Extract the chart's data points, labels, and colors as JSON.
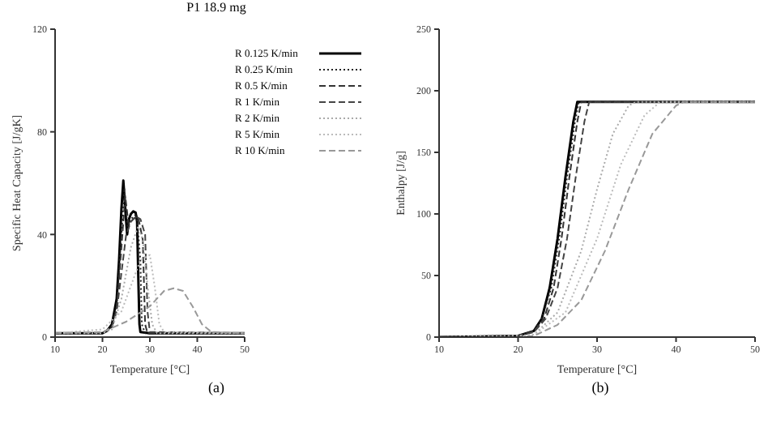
{
  "chart_data": [
    {
      "type": "line",
      "title": "P1 18.9 mg",
      "xlabel": "Temperature [°C]",
      "ylabel": "Specific Heat Capacity [J/gK]",
      "xlim": [
        10,
        50
      ],
      "xticks": [
        10,
        20,
        30,
        40,
        50
      ],
      "ylim": [
        0,
        120
      ],
      "yticks": [
        0,
        40,
        80,
        120
      ],
      "legend": "top right",
      "marker": "none",
      "annotations": [
        "(a)"
      ],
      "series": [
        {
          "name": "R 0.125 K/min",
          "color": "#000000",
          "line_style": "solid",
          "x": [
            10,
            20,
            21,
            22,
            23,
            23.5,
            24,
            24.4,
            24.8,
            25.2,
            25.6,
            26,
            26.5,
            27,
            27.3,
            27.6,
            27.8,
            28,
            30,
            50
          ],
          "values": [
            1.5,
            1.5,
            2.5,
            5,
            15,
            30,
            50,
            61,
            50,
            40,
            46,
            48,
            49,
            48.5,
            45,
            20,
            5,
            2,
            1.5,
            1.5
          ]
        },
        {
          "name": "R 0.25 K/min",
          "color": "#222222",
          "line_style": "dotted",
          "x": [
            10,
            20,
            22,
            23,
            24,
            24.6,
            25.3,
            26,
            27.2,
            28,
            28.3,
            29,
            50
          ],
          "values": [
            1.5,
            1.5,
            4,
            12,
            40,
            58,
            42,
            46,
            48,
            30,
            5,
            1.5,
            1.5
          ]
        },
        {
          "name": "R 0.5 K/min",
          "color": "#333333",
          "line_style": "dashed",
          "x": [
            10,
            20,
            22,
            23,
            24,
            24.8,
            25.5,
            26.5,
            27.5,
            28.5,
            29,
            29.5,
            50
          ],
          "values": [
            1.5,
            1.5,
            4,
            11,
            35,
            55,
            44,
            46,
            47,
            38,
            5,
            1.5,
            1.5
          ]
        },
        {
          "name": "R 1 K/min",
          "color": "#444444",
          "line_style": "dashed",
          "x": [
            10,
            20,
            22,
            23,
            24,
            25,
            26,
            27,
            28,
            29,
            29.5,
            30,
            50
          ],
          "values": [
            1.5,
            1.5,
            4,
            10,
            25,
            40,
            45,
            47,
            46,
            40,
            10,
            2,
            1.5
          ]
        },
        {
          "name": "R 2 K/min",
          "color": "#aaaaaa",
          "line_style": "dotted",
          "x": [
            10,
            20,
            22,
            24,
            26,
            27.5,
            28.5,
            29.5,
            30.5,
            31.5,
            50
          ],
          "values": [
            1.5,
            1.5,
            3,
            15,
            35,
            43,
            38,
            20,
            5,
            1.5,
            1.5
          ]
        },
        {
          "name": "R 5 K/min",
          "color": "#bbbbbb",
          "line_style": "dotted",
          "x": [
            10,
            20,
            24,
            28,
            30,
            31,
            32,
            33,
            50
          ],
          "values": [
            1.5,
            3,
            10,
            30,
            32,
            20,
            5,
            2,
            1.5
          ]
        },
        {
          "name": "R 10 K/min",
          "color": "#999999",
          "line_style": "dashed",
          "x": [
            10,
            20,
            25,
            30,
            33,
            35,
            37,
            39,
            41,
            43,
            50
          ],
          "values": [
            1.5,
            2,
            6,
            12,
            18,
            19,
            18,
            12,
            5,
            2,
            1.5
          ]
        }
      ]
    },
    {
      "type": "line",
      "xlabel": "Temperature [°C]",
      "ylabel": "Enthalpy [J/g]",
      "xlim": [
        10,
        50
      ],
      "xticks": [
        10,
        20,
        30,
        40,
        50
      ],
      "ylim": [
        0,
        250
      ],
      "yticks": [
        0,
        50,
        100,
        150,
        200,
        250
      ],
      "marker": "none",
      "annotations": [
        "(b)"
      ],
      "series": [
        {
          "color": "#000000",
          "line_style": "solid",
          "x": [
            10,
            20,
            22,
            23,
            24,
            25,
            26,
            27,
            27.5,
            50
          ],
          "values": [
            0,
            1,
            5,
            15,
            40,
            80,
            130,
            175,
            191,
            191
          ]
        },
        {
          "color": "#222222",
          "line_style": "dotted",
          "x": [
            10,
            20,
            22,
            23,
            24.2,
            25.2,
            26.2,
            27.2,
            27.7,
            50
          ],
          "values": [
            0,
            1,
            5,
            15,
            40,
            80,
            130,
            175,
            191,
            191
          ]
        },
        {
          "color": "#333333",
          "line_style": "dashed",
          "x": [
            10,
            20,
            22,
            23.3,
            24.5,
            25.5,
            26.5,
            27.5,
            28,
            50
          ],
          "values": [
            0,
            1,
            5,
            15,
            40,
            80,
            130,
            175,
            191,
            191
          ]
        },
        {
          "color": "#444444",
          "line_style": "dashed",
          "x": [
            10,
            20,
            22,
            23.5,
            25,
            26.2,
            27.3,
            28.4,
            29,
            50
          ],
          "values": [
            0,
            1,
            4,
            15,
            40,
            80,
            130,
            175,
            191,
            191
          ]
        },
        {
          "color": "#aaaaaa",
          "line_style": "dotted",
          "x": [
            10,
            20,
            22,
            25,
            28,
            30,
            32,
            34,
            35,
            50
          ],
          "values": [
            0,
            1,
            2,
            20,
            70,
            120,
            165,
            188,
            191,
            191
          ]
        },
        {
          "color": "#bbbbbb",
          "line_style": "dotted",
          "x": [
            10,
            20,
            22,
            26,
            30,
            33,
            36,
            38,
            50
          ],
          "values": [
            0,
            1,
            2,
            20,
            80,
            140,
            180,
            191,
            191
          ]
        },
        {
          "color": "#999999",
          "line_style": "dashed",
          "x": [
            10,
            20,
            22,
            25,
            28,
            31,
            34,
            37,
            40,
            41,
            50
          ],
          "values": [
            0,
            0,
            1,
            10,
            30,
            70,
            120,
            165,
            188,
            191,
            191
          ]
        }
      ]
    }
  ]
}
